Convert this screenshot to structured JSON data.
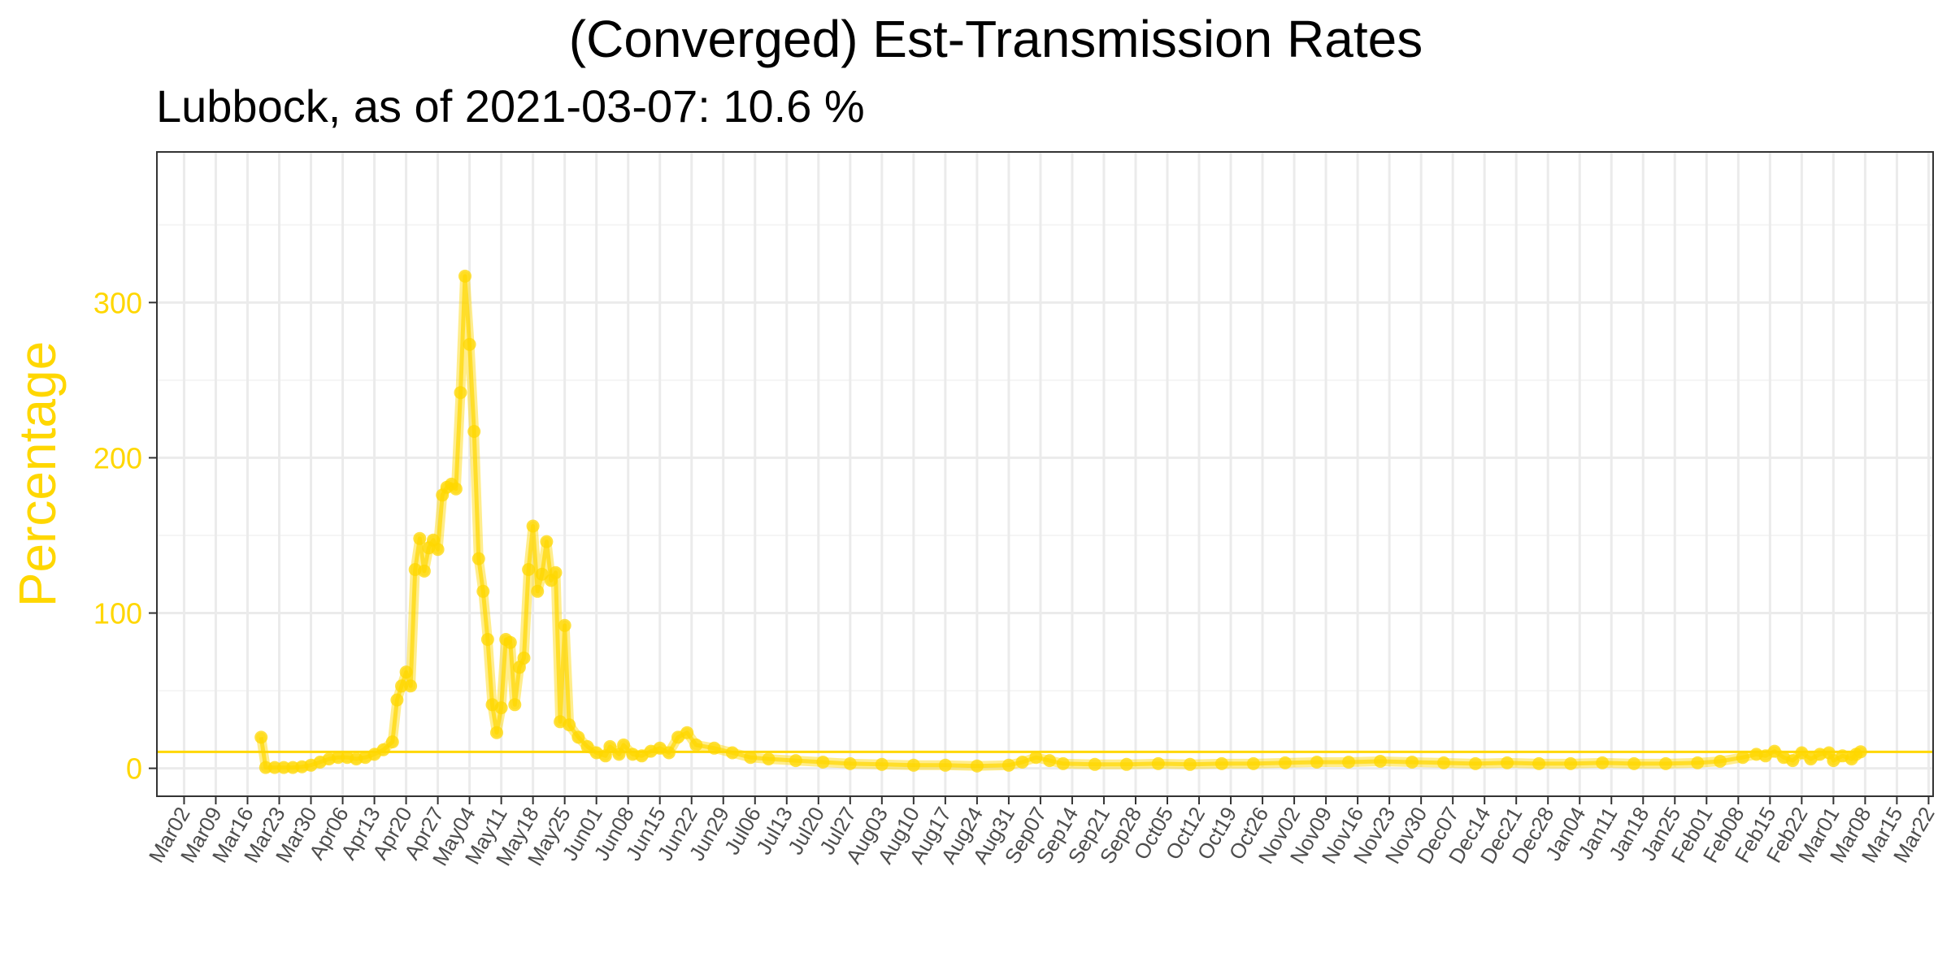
{
  "chart_data": {
    "type": "line",
    "title": "(Converged) Est-Transmission Rates",
    "subtitle": "Lubbock, as of 2021-03-07:  10.6 %",
    "xlabel": "",
    "ylabel": "Percentage",
    "ylim": [
      -18,
      397
    ],
    "yticks": [
      0,
      100,
      200,
      300
    ],
    "ytick_labels": [
      "0",
      "100",
      "200",
      "300"
    ],
    "xlim": [
      "2020-02-25",
      "2021-03-23"
    ],
    "xticks": [
      "2020-03-02",
      "2020-03-09",
      "2020-03-16",
      "2020-03-23",
      "2020-03-30",
      "2020-04-06",
      "2020-04-13",
      "2020-04-20",
      "2020-04-27",
      "2020-05-04",
      "2020-05-11",
      "2020-05-18",
      "2020-05-25",
      "2020-06-01",
      "2020-06-08",
      "2020-06-15",
      "2020-06-22",
      "2020-06-29",
      "2020-07-06",
      "2020-07-13",
      "2020-07-20",
      "2020-07-27",
      "2020-08-03",
      "2020-08-10",
      "2020-08-17",
      "2020-08-24",
      "2020-08-31",
      "2020-09-07",
      "2020-09-14",
      "2020-09-21",
      "2020-09-28",
      "2020-10-05",
      "2020-10-12",
      "2020-10-19",
      "2020-10-26",
      "2020-11-02",
      "2020-11-09",
      "2020-11-16",
      "2020-11-23",
      "2020-11-30",
      "2020-12-07",
      "2020-12-14",
      "2020-12-21",
      "2020-12-28",
      "2021-01-04",
      "2021-01-11",
      "2021-01-18",
      "2021-01-25",
      "2021-02-01",
      "2021-02-08",
      "2021-02-15",
      "2021-02-22",
      "2021-03-01",
      "2021-03-08",
      "2021-03-15",
      "2021-03-22"
    ],
    "xtick_labels": [
      "Mar02",
      "Mar09",
      "Mar16",
      "Mar23",
      "Mar30",
      "Apr06",
      "Apr13",
      "Apr20",
      "Apr27",
      "May04",
      "May11",
      "May18",
      "May25",
      "Jun01",
      "Jun08",
      "Jun15",
      "Jun22",
      "Jun29",
      "Jul06",
      "Jul13",
      "Jul20",
      "Jul27",
      "Aug03",
      "Aug10",
      "Aug17",
      "Aug24",
      "Aug31",
      "Sep07",
      "Sep14",
      "Sep21",
      "Sep28",
      "Oct05",
      "Oct12",
      "Oct19",
      "Oct26",
      "Nov02",
      "Nov09",
      "Nov16",
      "Nov23",
      "Nov30",
      "Dec07",
      "Dec14",
      "Dec21",
      "Dec28",
      "Jan04",
      "Jan11",
      "Jan18",
      "Jan25",
      "Feb01",
      "Feb08",
      "Feb15",
      "Feb22",
      "Mar01",
      "Mar08",
      "Mar15",
      "Mar22"
    ],
    "reference_line": {
      "y": 10.6
    },
    "grid": true,
    "series": [
      {
        "color": "#FFD700",
        "points": [
          [
            "2020-03-19",
            20
          ],
          [
            "2020-03-20",
            0.5
          ],
          [
            "2020-03-22",
            0.5
          ],
          [
            "2020-03-24",
            0.5
          ],
          [
            "2020-03-26",
            0.5
          ],
          [
            "2020-03-28",
            1
          ],
          [
            "2020-03-30",
            2
          ],
          [
            "2020-04-01",
            4
          ],
          [
            "2020-04-03",
            6
          ],
          [
            "2020-04-05",
            7
          ],
          [
            "2020-04-07",
            7
          ],
          [
            "2020-04-09",
            6
          ],
          [
            "2020-04-11",
            7
          ],
          [
            "2020-04-13",
            9
          ],
          [
            "2020-04-15",
            12
          ],
          [
            "2020-04-17",
            17
          ],
          [
            "2020-04-18",
            44
          ],
          [
            "2020-04-19",
            53
          ],
          [
            "2020-04-20",
            62
          ],
          [
            "2020-04-21",
            53
          ],
          [
            "2020-04-22",
            128
          ],
          [
            "2020-04-23",
            148
          ],
          [
            "2020-04-24",
            127
          ],
          [
            "2020-04-25",
            142
          ],
          [
            "2020-04-26",
            147
          ],
          [
            "2020-04-27",
            141
          ],
          [
            "2020-04-28",
            176
          ],
          [
            "2020-04-29",
            181
          ],
          [
            "2020-04-30",
            183
          ],
          [
            "2020-05-01",
            180
          ],
          [
            "2020-05-02",
            242
          ],
          [
            "2020-05-03",
            317
          ],
          [
            "2020-05-04",
            273
          ],
          [
            "2020-05-05",
            217
          ],
          [
            "2020-05-06",
            135
          ],
          [
            "2020-05-07",
            114
          ],
          [
            "2020-05-08",
            83
          ],
          [
            "2020-05-09",
            41
          ],
          [
            "2020-05-10",
            23
          ],
          [
            "2020-05-11",
            39
          ],
          [
            "2020-05-12",
            83
          ],
          [
            "2020-05-13",
            81
          ],
          [
            "2020-05-14",
            41
          ],
          [
            "2020-05-15",
            65
          ],
          [
            "2020-05-16",
            71
          ],
          [
            "2020-05-17",
            128
          ],
          [
            "2020-05-18",
            156
          ],
          [
            "2020-05-19",
            114
          ],
          [
            "2020-05-20",
            125
          ],
          [
            "2020-05-21",
            146
          ],
          [
            "2020-05-22",
            121
          ],
          [
            "2020-05-23",
            126
          ],
          [
            "2020-05-24",
            30
          ],
          [
            "2020-05-25",
            92
          ],
          [
            "2020-05-26",
            28
          ],
          [
            "2020-05-28",
            20
          ],
          [
            "2020-05-30",
            14
          ],
          [
            "2020-06-01",
            10
          ],
          [
            "2020-06-03",
            8
          ],
          [
            "2020-06-04",
            14
          ],
          [
            "2020-06-06",
            9
          ],
          [
            "2020-06-07",
            15
          ],
          [
            "2020-06-09",
            9
          ],
          [
            "2020-06-11",
            8
          ],
          [
            "2020-06-13",
            11
          ],
          [
            "2020-06-15",
            13
          ],
          [
            "2020-06-17",
            10
          ],
          [
            "2020-06-19",
            20
          ],
          [
            "2020-06-21",
            23
          ],
          [
            "2020-06-23",
            15
          ],
          [
            "2020-06-27",
            13
          ],
          [
            "2020-07-01",
            10
          ],
          [
            "2020-07-05",
            7
          ],
          [
            "2020-07-09",
            6
          ],
          [
            "2020-07-15",
            5
          ],
          [
            "2020-07-21",
            4
          ],
          [
            "2020-07-27",
            3
          ],
          [
            "2020-08-03",
            2.5
          ],
          [
            "2020-08-10",
            2
          ],
          [
            "2020-08-17",
            2
          ],
          [
            "2020-08-24",
            1.5
          ],
          [
            "2020-08-31",
            2
          ],
          [
            "2020-09-03",
            4
          ],
          [
            "2020-09-06",
            7
          ],
          [
            "2020-09-09",
            5
          ],
          [
            "2020-09-12",
            3
          ],
          [
            "2020-09-19",
            2.5
          ],
          [
            "2020-09-26",
            2.5
          ],
          [
            "2020-10-03",
            3
          ],
          [
            "2020-10-10",
            2.5
          ],
          [
            "2020-10-17",
            3
          ],
          [
            "2020-10-24",
            3
          ],
          [
            "2020-10-31",
            3.5
          ],
          [
            "2020-11-07",
            4
          ],
          [
            "2020-11-14",
            4
          ],
          [
            "2020-11-21",
            4.5
          ],
          [
            "2020-11-28",
            4
          ],
          [
            "2020-12-05",
            3.5
          ],
          [
            "2020-12-12",
            3
          ],
          [
            "2020-12-19",
            3.5
          ],
          [
            "2020-12-26",
            3
          ],
          [
            "2021-01-02",
            3
          ],
          [
            "2021-01-09",
            3.5
          ],
          [
            "2021-01-16",
            3
          ],
          [
            "2021-01-23",
            3
          ],
          [
            "2021-01-30",
            3.5
          ],
          [
            "2021-02-04",
            4.5
          ],
          [
            "2021-02-09",
            7
          ],
          [
            "2021-02-12",
            9
          ],
          [
            "2021-02-14",
            8
          ],
          [
            "2021-02-16",
            11
          ],
          [
            "2021-02-18",
            7
          ],
          [
            "2021-02-20",
            5
          ],
          [
            "2021-02-22",
            10
          ],
          [
            "2021-02-24",
            6
          ],
          [
            "2021-02-26",
            9
          ],
          [
            "2021-02-28",
            10
          ],
          [
            "2021-03-01",
            5
          ],
          [
            "2021-03-03",
            8
          ],
          [
            "2021-03-05",
            6
          ],
          [
            "2021-03-06",
            9
          ],
          [
            "2021-03-07",
            10.6
          ]
        ]
      }
    ],
    "colors": {
      "accent": "#FFD700",
      "axis_text": "#FFD700",
      "grid_major": "#EBEBEB",
      "grid_minor": "#F5F5F5",
      "panel_border": "#333333",
      "x_tick_text": "#4D4D4D"
    }
  }
}
